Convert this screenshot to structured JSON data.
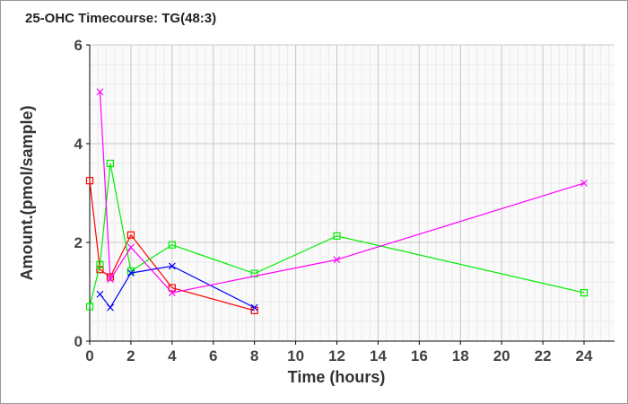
{
  "chart_data": {
    "type": "line",
    "title": "25-OHC Timecourse: TG(48:3)",
    "xlabel": "Time (hours)",
    "ylabel": "Amount.(pmol/sample)",
    "xlim": [
      0,
      25.5
    ],
    "ylim": [
      0,
      6
    ],
    "xticks": [
      0,
      2,
      4,
      6,
      8,
      10,
      12,
      14,
      16,
      18,
      20,
      22,
      24
    ],
    "yticks": [
      0,
      2,
      4,
      6
    ],
    "grid": true,
    "series": [
      {
        "color": "#ff0000",
        "marker": "square",
        "x": [
          0,
          0.5,
          1,
          2,
          4,
          8
        ],
        "y": [
          3.25,
          1.45,
          1.3,
          2.15,
          1.08,
          0.62
        ]
      },
      {
        "color": "#00ee00",
        "marker": "square",
        "x": [
          0,
          0.5,
          1,
          2,
          4,
          8,
          12,
          24
        ],
        "y": [
          0.7,
          1.55,
          3.6,
          1.42,
          1.95,
          1.37,
          2.13,
          0.98
        ]
      },
      {
        "color": "#0000ff",
        "marker": "x",
        "x": [
          0.5,
          1,
          2,
          4,
          8
        ],
        "y": [
          0.95,
          0.68,
          1.38,
          1.52,
          0.68
        ]
      },
      {
        "color": "#ff00ff",
        "marker": "x",
        "x": [
          0.5,
          1,
          2,
          4,
          12,
          24
        ],
        "y": [
          5.05,
          1.25,
          1.9,
          0.98,
          1.65,
          3.2
        ]
      }
    ]
  }
}
